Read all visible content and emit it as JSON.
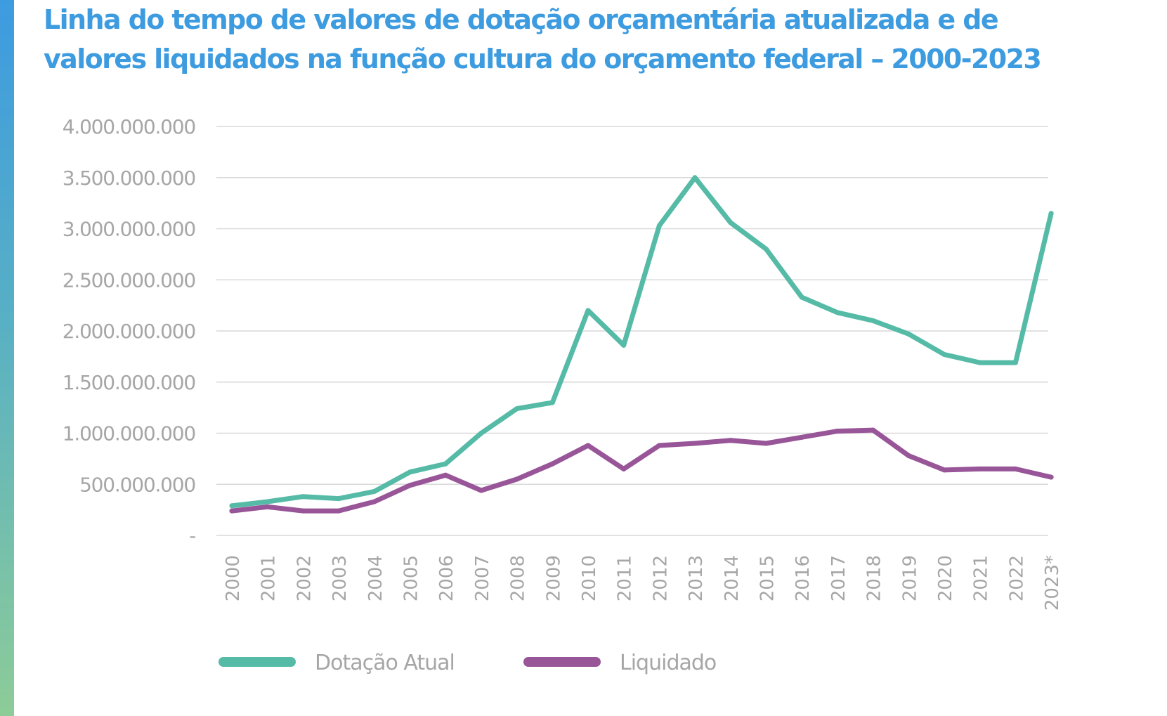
{
  "title": {
    "line1": "Linha do tempo de valores de dotação orçamentária atualizada e de",
    "line2": "valores liquidados na função cultura do orçamento federal – 2000-2023"
  },
  "colors": {
    "title": "#3d9be0",
    "dotacao": "#55bba6",
    "liquidado": "#985699",
    "grid": "#d9d9d9",
    "tick_text": "#a6a6a6"
  },
  "chart_data": {
    "type": "line",
    "title": "Linha do tempo de valores de dotação orçamentária atualizada e de valores liquidados na função cultura do orçamento federal – 2000-2023",
    "x": [
      "2000",
      "2001",
      "2002",
      "2003",
      "2004",
      "2005",
      "2006",
      "2007",
      "2008",
      "2009",
      "2010",
      "2011",
      "2012",
      "2013",
      "2014",
      "2015",
      "2016",
      "2017",
      "2018",
      "2019",
      "2020",
      "2021",
      "2022",
      "2023*"
    ],
    "series": [
      {
        "name": "Dotação Atual",
        "color": "#55bba6",
        "values": [
          290000000,
          330000000,
          380000000,
          360000000,
          430000000,
          620000000,
          700000000,
          1000000000,
          1240000000,
          1300000000,
          2200000000,
          1860000000,
          3030000000,
          3500000000,
          3060000000,
          2800000000,
          2330000000,
          2180000000,
          2100000000,
          1970000000,
          1770000000,
          1690000000,
          1690000000,
          3150000000
        ]
      },
      {
        "name": "Liquidado",
        "color": "#985699",
        "values": [
          240000000,
          280000000,
          240000000,
          240000000,
          330000000,
          490000000,
          590000000,
          440000000,
          550000000,
          700000000,
          880000000,
          650000000,
          880000000,
          900000000,
          930000000,
          900000000,
          960000000,
          1020000000,
          1030000000,
          780000000,
          640000000,
          650000000,
          650000000,
          570000000
        ]
      }
    ],
    "ylim": [
      0,
      4000000000
    ],
    "yticks": [
      0,
      500000000,
      1000000000,
      1500000000,
      2000000000,
      2500000000,
      3000000000,
      3500000000,
      4000000000
    ],
    "ytick_labels": [
      "-",
      "500.000.000",
      "1.000.000.000",
      "1.500.000.000",
      "2.000.000.000",
      "2.500.000.000",
      "3.000.000.000",
      "3.500.000.000",
      "4.000.000.000"
    ],
    "xlabel": "",
    "ylabel": "",
    "grid": true,
    "legend": "bottom-left"
  }
}
